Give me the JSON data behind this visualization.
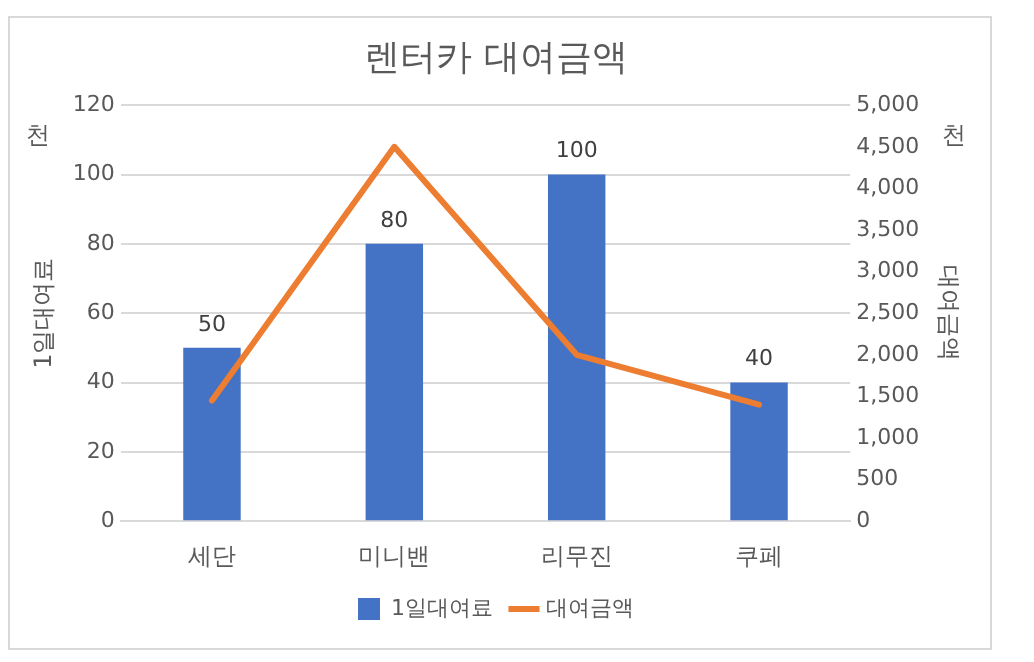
{
  "chart_data": {
    "type": "bar",
    "title": "렌터카 대여금액",
    "categories": [
      "세단",
      "미니밴",
      "리무진",
      "쿠페"
    ],
    "series": [
      {
        "name": "1일대여료",
        "color": "#4472c4",
        "values": [
          50,
          80,
          100,
          40
        ],
        "value_labels": [
          "50",
          "80",
          "100",
          "40"
        ]
      },
      {
        "name": "대여금액",
        "type": "line",
        "axis": "y2",
        "color": "#ed7d31",
        "values": [
          1450,
          4500,
          2000,
          1400
        ],
        "marker": "none"
      }
    ],
    "ylabel": "1일대여료",
    "y2label": "대여금액",
    "ylim": [
      0,
      120
    ],
    "yticks": [
      0,
      20,
      40,
      60,
      80,
      100,
      120
    ],
    "y2lim": [
      0,
      5000
    ],
    "y2ticks": [
      {
        "value": 0,
        "label": "0"
      },
      {
        "value": 500,
        "label": "500"
      },
      {
        "value": 1000,
        "label": "1,000"
      },
      {
        "value": 1500,
        "label": "1,500"
      },
      {
        "value": 2000,
        "label": "2,000"
      },
      {
        "value": 2500,
        "label": "2,500"
      },
      {
        "value": 3000,
        "label": "3,000"
      },
      {
        "value": 3500,
        "label": "3,500"
      },
      {
        "value": 4000,
        "label": "4,000"
      },
      {
        "value": 4500,
        "label": "4,500"
      },
      {
        "value": 5000,
        "label": "5,000"
      }
    ],
    "annotations": [
      "천",
      "천"
    ],
    "grid": "y",
    "legend": "bottom"
  }
}
